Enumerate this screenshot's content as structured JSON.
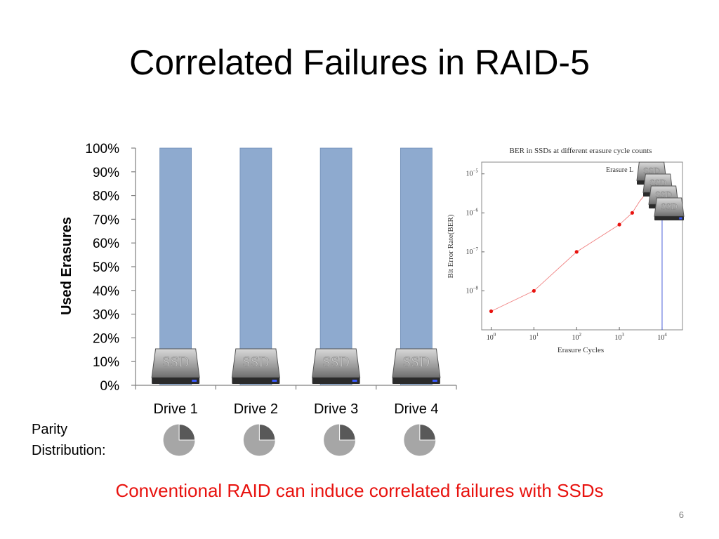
{
  "slide": {
    "title": "Correlated Failures in RAID-5",
    "parity_label": "Parity\nDistribution:",
    "conclusion": "Conventional RAID can induce correlated failures with SSDs",
    "page_number": "6",
    "drive_badge_text": "SSD"
  },
  "colors": {
    "bar": "#8eaacf",
    "bar_stroke": "#6f8db6",
    "conclusion": "#e8120e",
    "pie_light": "#a6a6a6",
    "pie_dark": "#595959",
    "ber_line": "#f08080",
    "ber_point": "#e8120e",
    "ber_marker": "#4a5fd8"
  },
  "chart_data": [
    {
      "type": "bar",
      "title": "",
      "xlabel": "",
      "ylabel": "Used Erasures",
      "categories": [
        "Drive 1",
        "Drive 2",
        "Drive 3",
        "Drive 4"
      ],
      "values": [
        100,
        100,
        100,
        100
      ],
      "yticks": [
        "0%",
        "10%",
        "20%",
        "30%",
        "40%",
        "50%",
        "60%",
        "70%",
        "80%",
        "90%",
        "100%"
      ],
      "ylim": [
        0,
        100
      ],
      "grid": false,
      "legend": "none"
    },
    {
      "type": "pie",
      "title": "",
      "labels": [
        "Drive 1",
        "Drive 2",
        "Drive 3",
        "Drive 4"
      ],
      "parity_fraction": [
        0.25,
        0.25,
        0.25,
        0.25
      ]
    },
    {
      "type": "line",
      "title": "BER in SSDs at different erasure cycle counts",
      "xlabel": "Erasure Cycles",
      "ylabel": "Bit Error Rate(BER)",
      "x_scale": "log",
      "y_scale": "log",
      "xlim": [
        0.6,
        30000
      ],
      "ylim": [
        1e-09,
        2e-05
      ],
      "xticks": [
        {
          "base": "10",
          "exp": "0",
          "value": 1
        },
        {
          "base": "10",
          "exp": "1",
          "value": 10
        },
        {
          "base": "10",
          "exp": "2",
          "value": 100
        },
        {
          "base": "10",
          "exp": "3",
          "value": 1000
        },
        {
          "base": "10",
          "exp": "4",
          "value": 10000
        }
      ],
      "yticks": [
        {
          "base": "10",
          "exp": "−8",
          "value": 1e-08
        },
        {
          "base": "10",
          "exp": "−7",
          "value": 1e-07
        },
        {
          "base": "10",
          "exp": "−6",
          "value": 1e-06
        },
        {
          "base": "10",
          "exp": "−5",
          "value": 1e-05
        }
      ],
      "legend_partial": "Erasure L",
      "series": [
        {
          "x": [
            1,
            10,
            100,
            1000,
            2000,
            3000,
            5000,
            7000,
            10000
          ],
          "y": [
            3e-09,
            1e-08,
            1e-07,
            5e-07,
            1e-06,
            2e-06,
            4e-06,
            6e-06,
            9e-06
          ]
        }
      ],
      "vertical_marker_x": 10000,
      "ssd_stack_count": 4
    }
  ]
}
